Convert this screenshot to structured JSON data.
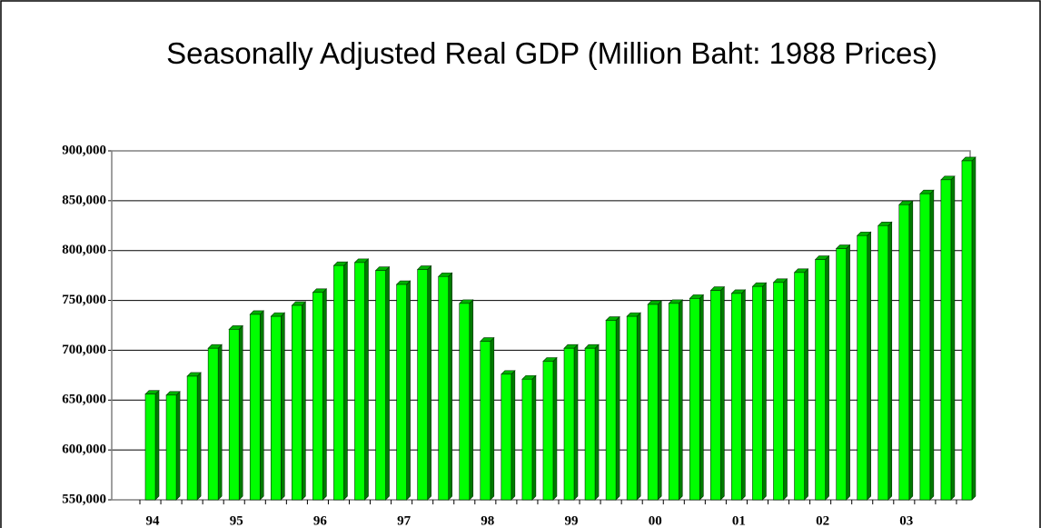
{
  "chart_data": {
    "type": "bar",
    "title": "Seasonally Adjusted Real GDP (Million Baht: 1988 Prices)",
    "categories": [
      "94",
      null,
      null,
      null,
      "95",
      null,
      null,
      null,
      "96",
      null,
      null,
      null,
      "97",
      null,
      null,
      null,
      "98",
      null,
      null,
      null,
      "99",
      null,
      null,
      null,
      "00",
      null,
      null,
      null,
      "01",
      null,
      null,
      null,
      "02",
      null,
      null,
      null,
      "03",
      null,
      null,
      null
    ],
    "values": [
      656000,
      655000,
      674000,
      702000,
      721000,
      736000,
      734000,
      745000,
      758000,
      785000,
      788000,
      780000,
      766000,
      781000,
      774000,
      747000,
      709000,
      676000,
      671000,
      689000,
      702000,
      702000,
      730000,
      734000,
      746000,
      747000,
      752000,
      760000,
      757000,
      764000,
      768000,
      778000,
      791000,
      802000,
      815000,
      825000,
      846000,
      857000,
      871000,
      890000
    ],
    "color": "#00ff00",
    "ylim": [
      550000,
      900000
    ],
    "yticks": [
      {
        "value": 550000,
        "label": "550,000"
      },
      {
        "value": 600000,
        "label": "600,000"
      },
      {
        "value": 650000,
        "label": "650,000"
      },
      {
        "value": 700000,
        "label": "700,000"
      },
      {
        "value": 750000,
        "label": "750,000"
      },
      {
        "value": 800000,
        "label": "800,000"
      },
      {
        "value": 850000,
        "label": "850,000"
      },
      {
        "value": 900000,
        "label": "900,000"
      }
    ],
    "grid": true
  }
}
